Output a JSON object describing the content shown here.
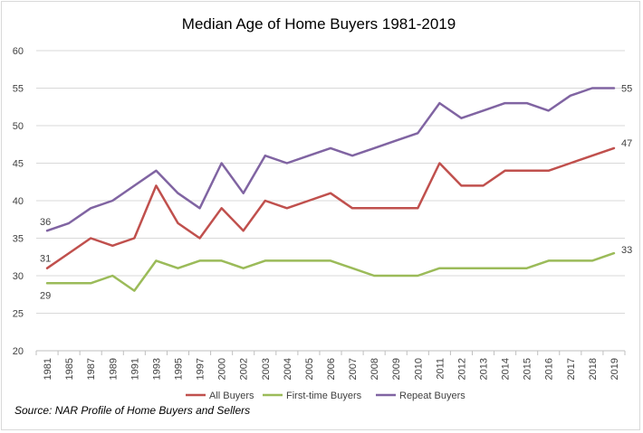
{
  "chart_data": {
    "type": "line",
    "title": "Median Age of Home Buyers 1981-2019",
    "xlabel": "",
    "ylabel": "",
    "ylim": [
      20,
      60
    ],
    "y_ticks": [
      20,
      25,
      30,
      35,
      40,
      45,
      50,
      55,
      60
    ],
    "grid": true,
    "legend_position": "bottom",
    "categories": [
      "1981",
      "1985",
      "1987",
      "1989",
      "1991",
      "1993",
      "1995",
      "1997",
      "2000",
      "2002",
      "2003",
      "2004",
      "2005",
      "2006",
      "2007",
      "2008",
      "2009",
      "2010",
      "2011",
      "2012",
      "2013",
      "2014",
      "2015",
      "2016",
      "2017",
      "2018",
      "2019"
    ],
    "series": [
      {
        "name": "All Buyers",
        "color": "#c0504d",
        "values": [
          31,
          33,
          35,
          34,
          35,
          42,
          37,
          35,
          39,
          36,
          40,
          39,
          40,
          41,
          39,
          39,
          39,
          39,
          45,
          42,
          42,
          44,
          44,
          44,
          45,
          46,
          47
        ]
      },
      {
        "name": "First-time Buyers",
        "color": "#9bbb59",
        "values": [
          29,
          29,
          29,
          30,
          28,
          32,
          31,
          32,
          32,
          31,
          32,
          32,
          32,
          32,
          31,
          30,
          30,
          30,
          31,
          31,
          31,
          31,
          31,
          32,
          32,
          32,
          33
        ]
      },
      {
        "name": "Repeat Buyers",
        "color": "#8064a2",
        "values": [
          36,
          37,
          39,
          40,
          42,
          44,
          41,
          39,
          45,
          41,
          46,
          45,
          46,
          47,
          46,
          47,
          48,
          49,
          53,
          51,
          52,
          53,
          53,
          52,
          54,
          55,
          55
        ]
      }
    ],
    "data_labels": [
      {
        "series": "All Buyers",
        "category": "1981",
        "text": "31"
      },
      {
        "series": "All Buyers",
        "category": "2019",
        "text": "47"
      },
      {
        "series": "First-time Buyers",
        "category": "1981",
        "text": "29"
      },
      {
        "series": "First-time Buyers",
        "category": "2019",
        "text": "33"
      },
      {
        "series": "Repeat Buyers",
        "category": "1981",
        "text": "36"
      },
      {
        "series": "Repeat Buyers",
        "category": "2019",
        "text": "55"
      }
    ]
  },
  "source_note": "Source: NAR Profile of Home Buyers and Sellers"
}
